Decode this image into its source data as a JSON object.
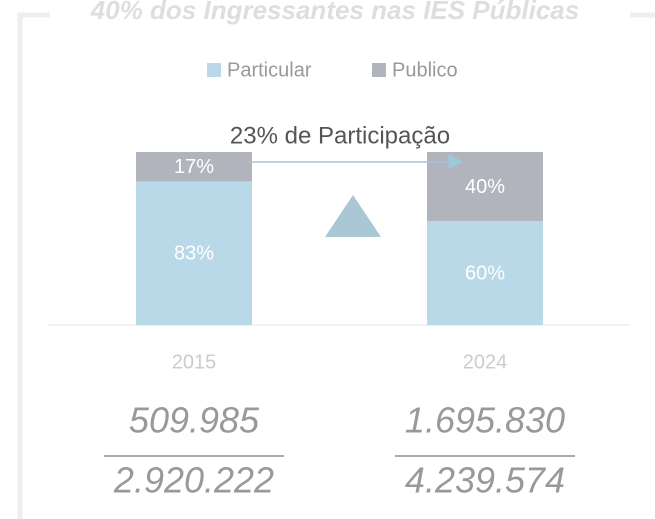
{
  "chart_data": {
    "type": "stacked_bar",
    "title": "40% dos Ingressantes nas IES Públicas",
    "annotation": "23% de Participação",
    "categories": [
      "2015",
      "2024"
    ],
    "series": [
      {
        "name": "Particular",
        "color": "#b9d8e8",
        "values": [
          83,
          60
        ],
        "value_labels": [
          "83%",
          "60%"
        ]
      },
      {
        "name": "Publico",
        "color": "#b1b4bd",
        "values": [
          17,
          40
        ],
        "value_labels": [
          "17%",
          "40%"
        ]
      }
    ],
    "ylim": [
      0,
      100
    ],
    "legend": "top",
    "fractions": [
      {
        "numerator": "509.985",
        "denominator": "2.920.222"
      },
      {
        "numerator": "1.695.830",
        "denominator": "4.239.574"
      }
    ]
  }
}
